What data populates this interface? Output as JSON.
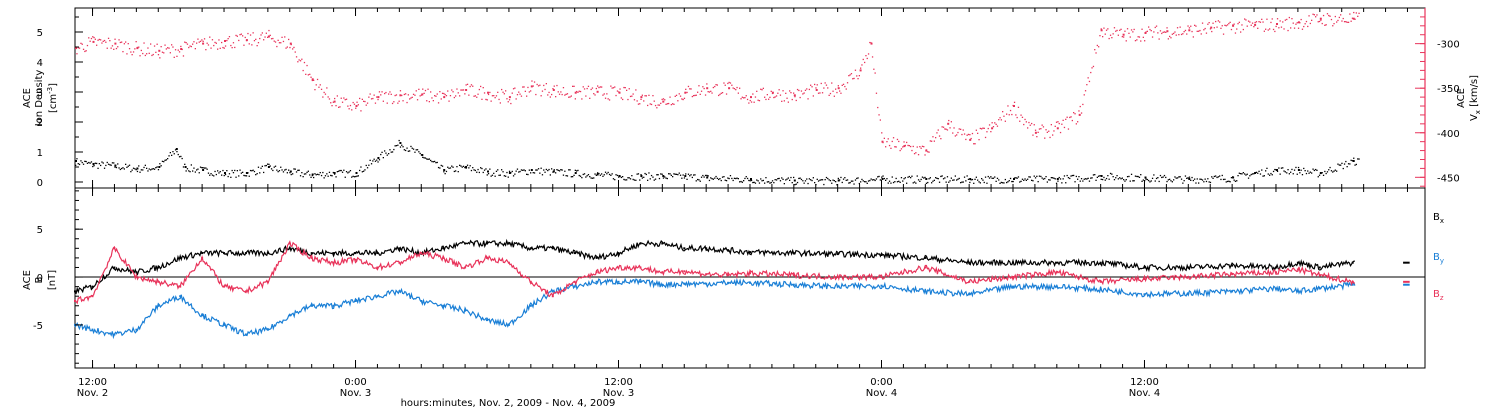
{
  "colors": {
    "density": "#000000",
    "vx": "#e8335a",
    "bx": "#000000",
    "by": "#1a7fd6",
    "bz": "#e8335a",
    "axis": "#000000"
  },
  "chart_data": [
    {
      "type": "scatter",
      "panel": "top",
      "ylabel_left": [
        "ACE",
        "Ion Density",
        "[cm",
        "-3",
        "]"
      ],
      "ylabel_right": [
        "ACE",
        "V",
        "x",
        " [km/s]"
      ],
      "yticks_left": [
        "0",
        "1",
        "2",
        "3",
        "4",
        "5"
      ],
      "ylim_left": [
        -0.2,
        5.8
      ],
      "yticks_right": [
        "-300",
        "-350",
        "-400",
        "-450"
      ],
      "ylim_right": [
        -462,
        -260
      ],
      "series": [
        {
          "role": "ion_density",
          "axis": "left",
          "color": "#000000",
          "x_hours": [
            -0.8,
            0,
            1,
            2,
            3,
            3.8,
            4.2,
            5,
            6,
            7,
            8,
            9,
            10,
            11,
            12,
            13,
            14,
            15,
            16,
            17,
            18,
            19,
            20,
            21,
            22,
            23,
            24,
            25,
            26,
            27,
            28,
            30,
            32,
            34,
            36,
            38,
            40,
            42,
            44,
            46,
            48,
            50,
            52,
            53,
            54,
            55,
            56,
            57.5
          ],
          "values": [
            0.7,
            0.6,
            0.55,
            0.45,
            0.5,
            1.1,
            0.5,
            0.4,
            0.3,
            0.3,
            0.5,
            0.35,
            0.25,
            0.3,
            0.3,
            0.8,
            1.3,
            0.9,
            0.4,
            0.5,
            0.35,
            0.3,
            0.4,
            0.35,
            0.3,
            0.25,
            0.2,
            0.2,
            0.2,
            0.2,
            0.15,
            0.1,
            0.05,
            0.05,
            0.1,
            0.1,
            0.1,
            0.1,
            0.1,
            0.2,
            0.15,
            0.1,
            0.15,
            0.3,
            0.4,
            0.4,
            0.3,
            0.7
          ]
        },
        {
          "role": "vx",
          "axis": "right",
          "color": "#e8335a",
          "x_hours": [
            -0.8,
            0,
            1,
            2,
            3,
            4,
            5,
            6,
            7,
            8,
            9,
            10,
            11,
            12,
            13,
            14,
            15,
            16,
            17,
            18,
            19,
            20,
            21,
            22,
            23,
            24,
            25,
            26,
            27,
            28,
            29,
            30,
            31,
            32,
            33,
            34,
            35,
            35.5,
            36,
            37,
            38,
            39,
            40,
            41,
            42,
            43,
            44,
            45,
            46,
            47,
            48,
            49,
            50,
            51,
            52,
            53,
            54,
            55,
            56,
            57.5
          ],
          "values": [
            -305,
            -298,
            -300,
            -305,
            -308,
            -306,
            -300,
            -297,
            -296,
            -292,
            -300,
            -340,
            -365,
            -370,
            -360,
            -358,
            -357,
            -360,
            -352,
            -355,
            -360,
            -348,
            -352,
            -355,
            -354,
            -355,
            -360,
            -365,
            -355,
            -350,
            -350,
            -360,
            -355,
            -358,
            -352,
            -350,
            -330,
            -300,
            -410,
            -415,
            -420,
            -390,
            -408,
            -395,
            -370,
            -400,
            -395,
            -380,
            -285,
            -290,
            -288,
            -286,
            -285,
            -282,
            -280,
            -279,
            -278,
            -276,
            -272,
            -272
          ]
        }
      ]
    },
    {
      "type": "line",
      "panel": "bottom",
      "ylabel": [
        "ACE",
        "B",
        "[nT]"
      ],
      "yticks": [
        "5",
        "0",
        "-5"
      ],
      "ylim": [
        -9.5,
        9.3
      ],
      "legend": [
        "B",
        "B",
        "B"
      ],
      "legend_subscripts": [
        "x",
        "y",
        "z"
      ],
      "legend_position": "right",
      "series": [
        {
          "role": "bx",
          "color": "#000000",
          "x_hours": [
            -0.8,
            0,
            1,
            2,
            3,
            4,
            5,
            6,
            7,
            8,
            9,
            10,
            11,
            12,
            13,
            14,
            15,
            16,
            17,
            18,
            19,
            20,
            21,
            22,
            23,
            24,
            25,
            26,
            27,
            28,
            29,
            30,
            32,
            34,
            36,
            38,
            40,
            42,
            44,
            46,
            48,
            50,
            52,
            54,
            55,
            56,
            57.5
          ],
          "values": [
            -1.5,
            -1.0,
            1.0,
            0.5,
            1.0,
            2.0,
            2.5,
            2.5,
            2.5,
            2.5,
            3.0,
            2.5,
            2.5,
            2.5,
            2.5,
            3.0,
            2.5,
            3.0,
            3.5,
            3.5,
            3.5,
            3.0,
            3.0,
            2.5,
            2.0,
            2.5,
            3.5,
            3.5,
            3.0,
            3.0,
            2.8,
            2.6,
            2.5,
            2.4,
            2.3,
            2.0,
            1.5,
            1.5,
            1.5,
            1.5,
            1.0,
            1.0,
            1.2,
            1.0,
            1.5,
            1.0,
            1.5
          ]
        },
        {
          "role": "by",
          "color": "#1a7fd6",
          "x_hours": [
            -0.8,
            0,
            1,
            2,
            3,
            4,
            5,
            6,
            7,
            8,
            9,
            10,
            11,
            12,
            13,
            14,
            15,
            16,
            17,
            18,
            19,
            20,
            21,
            22,
            23,
            24,
            25,
            26,
            27,
            28,
            29,
            30,
            32,
            34,
            36,
            38,
            40,
            42,
            44,
            46,
            48,
            50,
            52,
            54,
            55,
            56,
            57.5
          ],
          "values": [
            -5.0,
            -5.5,
            -6.0,
            -5.5,
            -3.0,
            -2.0,
            -4.0,
            -5.0,
            -6.0,
            -5.5,
            -4.0,
            -3.0,
            -3.0,
            -2.5,
            -2.0,
            -1.5,
            -2.5,
            -3.0,
            -3.5,
            -4.5,
            -5.0,
            -3.0,
            -1.5,
            -1.0,
            -0.5,
            -0.5,
            -0.5,
            -0.8,
            -0.7,
            -0.7,
            -0.6,
            -0.6,
            -0.8,
            -1.0,
            -0.9,
            -1.5,
            -1.8,
            -1.0,
            -1.0,
            -1.3,
            -1.8,
            -1.7,
            -1.5,
            -1.2,
            -1.5,
            -1.2,
            -0.8
          ]
        },
        {
          "role": "bz",
          "color": "#e8335a",
          "x_hours": [
            -0.8,
            0,
            1,
            2,
            3,
            4,
            5,
            6,
            7,
            8,
            9,
            10,
            11,
            12,
            13,
            14,
            15,
            16,
            17,
            18,
            19,
            20,
            21,
            22,
            23,
            24,
            25,
            26,
            27,
            28,
            29,
            30,
            32,
            34,
            36,
            38,
            40,
            42,
            44,
            46,
            48,
            50,
            52,
            54,
            55,
            56,
            57.5
          ],
          "values": [
            -2.5,
            -2.0,
            3.0,
            0.0,
            -0.5,
            -1.0,
            2.0,
            -1.0,
            -1.5,
            -0.5,
            3.5,
            2.0,
            1.5,
            1.8,
            1.0,
            1.5,
            2.5,
            2.0,
            1.0,
            2.0,
            1.5,
            -0.5,
            -2.0,
            -0.5,
            0.5,
            1.0,
            1.0,
            0.5,
            0.6,
            0.3,
            0.2,
            0.4,
            0.2,
            0.0,
            0.0,
            1.0,
            -0.5,
            0.0,
            0.5,
            -0.5,
            -0.2,
            0.0,
            0.3,
            0.5,
            0.8,
            0.2,
            -0.5
          ]
        }
      ]
    }
  ],
  "xaxis": {
    "ticks": [
      {
        "hours": 0,
        "time": "12:00",
        "date": "Nov. 2"
      },
      {
        "hours": 12,
        "time": "0:00",
        "date": "Nov. 3"
      },
      {
        "hours": 24,
        "time": "12:00",
        "date": "Nov. 3"
      },
      {
        "hours": 36,
        "time": "0:00",
        "date": "Nov. 4"
      },
      {
        "hours": 48,
        "time": "12:00",
        "date": "Nov. 4"
      }
    ],
    "label": "hours:minutes, Nov. 2, 2009 - Nov. 4, 2009"
  }
}
